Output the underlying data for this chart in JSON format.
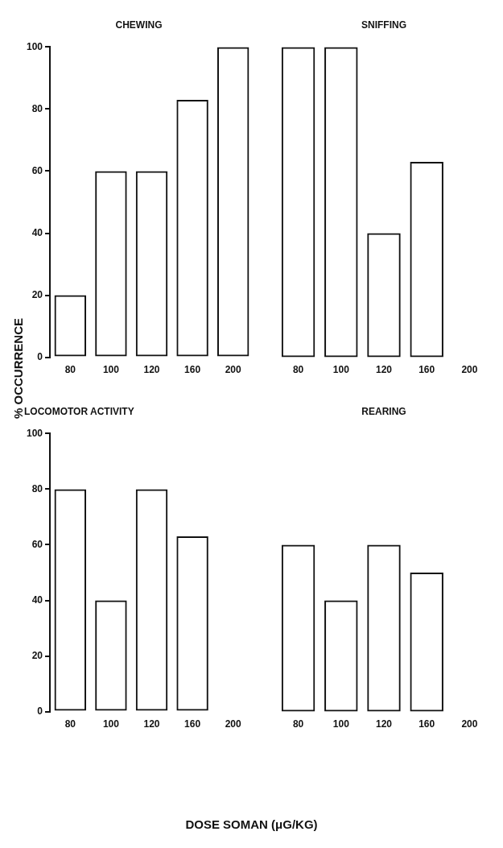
{
  "chart_data": [
    {
      "type": "bar",
      "title": "CHEWING",
      "ylabel": "% OCCURRENCE",
      "categories": [
        "80",
        "100",
        "120",
        "160",
        "200"
      ],
      "values": [
        20,
        60,
        60,
        83,
        100
      ],
      "color": "#111111",
      "ylim": [
        0,
        100
      ],
      "yticks": [
        0,
        20,
        40,
        60,
        80,
        100
      ],
      "grid": false,
      "legend": false
    },
    {
      "type": "bar",
      "title": "SNIFFING",
      "categories": [
        "80",
        "100",
        "120",
        "160",
        "200"
      ],
      "values": [
        100,
        100,
        40,
        63,
        0
      ],
      "color": "#111111",
      "ylim": [
        0,
        100
      ],
      "yticks": [
        0,
        20,
        40,
        60,
        80,
        100
      ],
      "grid": false,
      "legend": false,
      "tick_labels": "x"
    },
    {
      "type": "bar",
      "title": "LOCOMOTOR ACTIVITY",
      "xlabel": "DOSE SOMAN (μG/KG)",
      "categories": [
        "80",
        "100",
        "120",
        "160",
        "200"
      ],
      "values": [
        80,
        40,
        80,
        63,
        0
      ],
      "color": "#111111",
      "ylim": [
        0,
        100
      ],
      "yticks": [
        0,
        20,
        40,
        60,
        80,
        100
      ],
      "grid": false,
      "legend": false
    },
    {
      "type": "bar",
      "title": "REARING",
      "categories": [
        "80",
        "100",
        "120",
        "160",
        "200"
      ],
      "values": [
        60,
        40,
        60,
        50,
        0
      ],
      "color": "#111111",
      "ylim": [
        0,
        100
      ],
      "yticks": [
        0,
        20,
        40,
        60,
        80,
        100
      ],
      "grid": false,
      "legend": false,
      "tick_labels": "x"
    }
  ]
}
